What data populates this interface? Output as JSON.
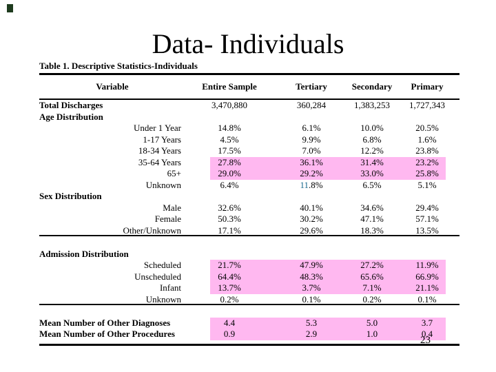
{
  "page": {
    "background_color": "#ffffff",
    "page_number": "23",
    "corner_mark_color": "#1e3b1e"
  },
  "title": "Data- Individuals",
  "table": {
    "caption": "Table 1. Descriptive Statistics-Individuals",
    "columns": [
      "Variable",
      "Entire Sample",
      "Tertiary",
      "Secondary",
      "Primary"
    ],
    "highlight_color": "#ffb8f0",
    "accent_digit_color": "#17688c",
    "rule_color": "#000000",
    "rows": [
      {
        "kind": "data",
        "label": "Total Discharges",
        "label_style": "bold",
        "values": [
          "3,470,880",
          "360,284",
          "1,383,253",
          "1,727,343"
        ],
        "highlight": false
      },
      {
        "kind": "section",
        "label": "Age Distribution"
      },
      {
        "kind": "data",
        "label": "Under 1 Year",
        "label_style": "sub",
        "values": [
          "14.8%",
          "6.1%",
          "10.0%",
          "20.5%"
        ],
        "highlight": false
      },
      {
        "kind": "data",
        "label": "1-17 Years",
        "label_style": "sub",
        "values": [
          "4.5%",
          "9.9%",
          "6.8%",
          "1.6%"
        ],
        "highlight": false
      },
      {
        "kind": "data",
        "label": "18-34 Years",
        "label_style": "sub",
        "values": [
          "17.5%",
          "7.0%",
          "12.2%",
          "23.8%"
        ],
        "highlight": false
      },
      {
        "kind": "data",
        "label": "35-64 Years",
        "label_style": "sub",
        "values": [
          "27.8%",
          "36.1%",
          "31.4%",
          "23.2%"
        ],
        "highlight": true
      },
      {
        "kind": "data",
        "label": "65+",
        "label_style": "sub",
        "values": [
          "29.0%",
          "29.2%",
          "33.0%",
          "25.8%"
        ],
        "highlight": true
      },
      {
        "kind": "data",
        "label": "Unknown",
        "label_style": "sub",
        "values": [
          "6.4%",
          {
            "parts": [
              {
                "text": "11",
                "accent": true
              },
              {
                "text": ".8%"
              }
            ]
          },
          "6.5%",
          "5.1%"
        ],
        "highlight": false
      },
      {
        "kind": "section",
        "label": "Sex Distribution"
      },
      {
        "kind": "data",
        "label": "Male",
        "label_style": "sub",
        "values": [
          "32.6%",
          "40.1%",
          "34.6%",
          "29.4%"
        ],
        "highlight": false
      },
      {
        "kind": "data",
        "label": "Female",
        "label_style": "sub",
        "values": [
          "50.3%",
          "30.2%",
          "47.1%",
          "57.1%"
        ],
        "highlight": false
      },
      {
        "kind": "data",
        "label": "Other/Unknown",
        "label_style": "sub",
        "values": [
          "17.1%",
          "29.6%",
          "18.3%",
          "13.5%"
        ],
        "highlight": false,
        "clipped": true
      },
      {
        "kind": "spacer"
      },
      {
        "kind": "section",
        "label": "Admission Distribution"
      },
      {
        "kind": "data",
        "label": "Scheduled",
        "label_style": "sub",
        "values": [
          "21.7%",
          "47.9%",
          "27.2%",
          "11.9%"
        ],
        "highlight": true
      },
      {
        "kind": "data",
        "label": "Unscheduled",
        "label_style": "sub",
        "values": [
          "64.4%",
          "48.3%",
          "65.6%",
          "66.9%"
        ],
        "highlight": true
      },
      {
        "kind": "data",
        "label": "Infant",
        "label_style": "sub",
        "values": [
          "13.7%",
          "3.7%",
          "7.1%",
          "21.1%"
        ],
        "highlight": true
      },
      {
        "kind": "data",
        "label": "Unknown",
        "label_style": "sub",
        "values": [
          "0.2%",
          "0.1%",
          "0.2%",
          "0.1%"
        ],
        "highlight": false,
        "clipped": true
      },
      {
        "kind": "spacer"
      },
      {
        "kind": "data",
        "label": "Mean Number of Other Diagnoses",
        "label_style": "bold",
        "values": [
          "4.4",
          "5.3",
          "5.0",
          "3.7"
        ],
        "highlight": true
      },
      {
        "kind": "data",
        "label": "Mean Number of Other Procedures",
        "label_style": "bold",
        "values": [
          "0.9",
          "2.9",
          "1.0",
          "0.4"
        ],
        "highlight": true
      }
    ]
  }
}
